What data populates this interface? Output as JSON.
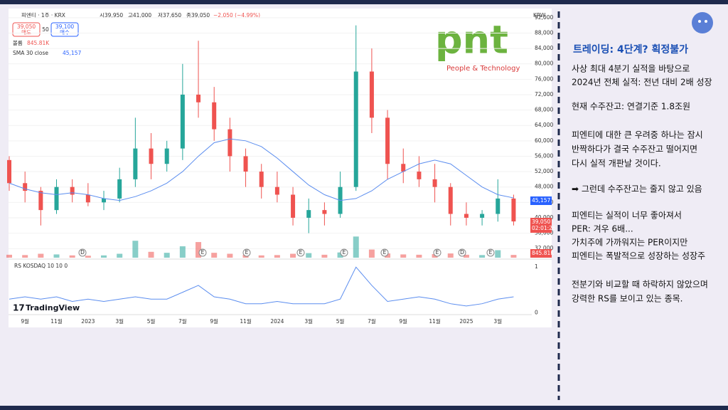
{
  "header": {
    "symbol": "피엔티 · 1주 · KRX",
    "open": "시39,950",
    "high": "고41,000",
    "low": "저37,650",
    "close": "종39,050",
    "change": "−2,050 (−4.99%)",
    "sell_price": "39,050",
    "sell": "매도",
    "spread": "50",
    "buy_price": "39,100",
    "buy": "매수",
    "volume_label": "볼륨",
    "volume_value": "845.81K",
    "sma_label": "SMA 30 close",
    "sma_value": "45,157",
    "currency": "KRW",
    "brand": "TradingView",
    "badges": [
      "45,157",
      "39,050",
      "02:01:26",
      "845.81K"
    ]
  },
  "logo": {
    "text": "pnt",
    "tagline": "People & Technology"
  },
  "notes": {
    "heading": "트레이딩: 4단계? 획정불가",
    "lines": [
      "사상 최대 4분기 실적을 바탕으로",
      "2024년 전체 실적: 전년 대비 2배 성장",
      "현재 수주잔고: 연결기준 1.8조원",
      "피엔티에 대한 큰 우려중 하나는 잠시",
      "반짝하다가 결국 수주잔고 떨어지면",
      "다시 실적 개판날 것이다.",
      "➡ 그런데 수주잔고는 줄지 않고 있음",
      "피엔티는 실적이 너무 좋아져서",
      "PER: 겨우 6배...",
      "가치주에 가까워지는 PER이지만",
      "피엔티는 폭발적으로 성장하는 성장주",
      "전분기와 비교할 때 하락하지 않았으며",
      "강력한 RS를 보이고 있는 종목."
    ]
  },
  "chart_data": [
    {
      "type": "candlestick",
      "categories": [
        null,
        "9월",
        null,
        "11월",
        null,
        "2023",
        null,
        "3월",
        null,
        "5월",
        null,
        "7월",
        null,
        "9월",
        null,
        "11월",
        null,
        "2024",
        null,
        "3월",
        null,
        "5월",
        null,
        "7월",
        null,
        "9월",
        null,
        "11월",
        null,
        "2025",
        null,
        "3월",
        null
      ],
      "open": [
        55000,
        49000,
        47000,
        42000,
        48000,
        46000,
        44000,
        45000,
        50000,
        58000,
        54000,
        58000,
        72000,
        70000,
        63000,
        56000,
        52000,
        48000,
        46000,
        40000,
        42000,
        41000,
        48000,
        78000,
        66000,
        54000,
        52000,
        50000,
        48000,
        41000,
        40000,
        41000,
        45000
      ],
      "high": [
        56000,
        52000,
        48000,
        50000,
        50000,
        49000,
        47000,
        53000,
        66000,
        62000,
        60000,
        80000,
        86000,
        74000,
        66000,
        58000,
        54000,
        52000,
        48000,
        45000,
        44000,
        52000,
        90000,
        84000,
        68000,
        58000,
        56000,
        54000,
        49000,
        44000,
        42000,
        50000,
        46000
      ],
      "low": [
        47000,
        44000,
        38000,
        41000,
        44000,
        43000,
        42000,
        44000,
        48000,
        50000,
        52000,
        55000,
        66000,
        60000,
        52000,
        48000,
        45000,
        44000,
        38000,
        36000,
        38000,
        40000,
        47000,
        62000,
        50000,
        49000,
        48000,
        44000,
        38000,
        38000,
        38000,
        39000,
        38000
      ],
      "close": [
        49000,
        47000,
        42000,
        48000,
        46000,
        44000,
        45000,
        50000,
        58000,
        54000,
        58000,
        72000,
        70000,
        63000,
        56000,
        52000,
        48000,
        46000,
        40000,
        42000,
        41000,
        48000,
        78000,
        66000,
        54000,
        52000,
        50000,
        48000,
        41000,
        40000,
        41000,
        45000,
        39050
      ],
      "up_color": "#26a69a",
      "down_color": "#ef5350",
      "sma": {
        "name": "SMA 30 close",
        "color": "#5b8def",
        "values": [
          49000,
          47500,
          46500,
          46000,
          46500,
          46000,
          45000,
          44500,
          45500,
          47000,
          49000,
          52000,
          56000,
          59500,
          60500,
          60000,
          58500,
          55500,
          52000,
          48500,
          46000,
          44500,
          45000,
          47000,
          50000,
          52000,
          54000,
          55000,
          54000,
          51000,
          48000,
          46000,
          45157
        ]
      },
      "volume": [
        900000,
        800000,
        1200000,
        1000000,
        700000,
        600000,
        700000,
        1200000,
        5200000,
        1800000,
        1500000,
        3500000,
        4800000,
        1500000,
        1200000,
        900000,
        700000,
        800000,
        1200000,
        1400000,
        900000,
        1600000,
        6500000,
        2500000,
        1300000,
        1000000,
        900000,
        1100000,
        1300000,
        900000,
        800000,
        2300000,
        845810
      ],
      "volume_lim": [
        0,
        7000000
      ],
      "ylim": [
        30000,
        94000
      ],
      "yticks": [
        {
          "value": 32000,
          "label": "32,000"
        },
        {
          "value": 36000,
          "label": "36,000"
        },
        {
          "value": 40000,
          "label": "40,000"
        },
        {
          "value": 44000,
          "label": "44,000"
        },
        {
          "value": 48000,
          "label": "48,000"
        },
        {
          "value": 52000,
          "label": "52,000"
        },
        {
          "value": 56000,
          "label": "56,000"
        },
        {
          "value": 60000,
          "label": "60,000"
        },
        {
          "value": 64000,
          "label": "64,000"
        },
        {
          "value": 68000,
          "label": "68,000"
        },
        {
          "value": 72000,
          "label": "72,000"
        },
        {
          "value": 76000,
          "label": "76,000"
        },
        {
          "value": 80000,
          "label": "80,000"
        },
        {
          "value": 84000,
          "label": "84,000"
        },
        {
          "value": 88000,
          "label": "88,000"
        },
        {
          "value": 92000,
          "label": "92,000"
        }
      ],
      "events": [
        "D",
        "E",
        "E",
        "E",
        "E",
        "E",
        "E",
        "D",
        "E"
      ]
    },
    {
      "type": "line",
      "title": "RS KOSDAQ 10 10 0",
      "color": "#5b8def",
      "values": [
        0.3,
        0.35,
        0.3,
        0.35,
        0.25,
        0.3,
        0.25,
        0.3,
        0.35,
        0.3,
        0.3,
        0.45,
        0.6,
        0.35,
        0.3,
        0.2,
        0.2,
        0.25,
        0.2,
        0.2,
        0.2,
        0.3,
        1.0,
        0.6,
        0.25,
        0.3,
        0.35,
        0.3,
        0.2,
        0.15,
        0.2,
        0.3,
        0.35
      ],
      "ylim": [
        -0.1,
        1.05
      ],
      "yticks": [
        0,
        1
      ]
    }
  ]
}
